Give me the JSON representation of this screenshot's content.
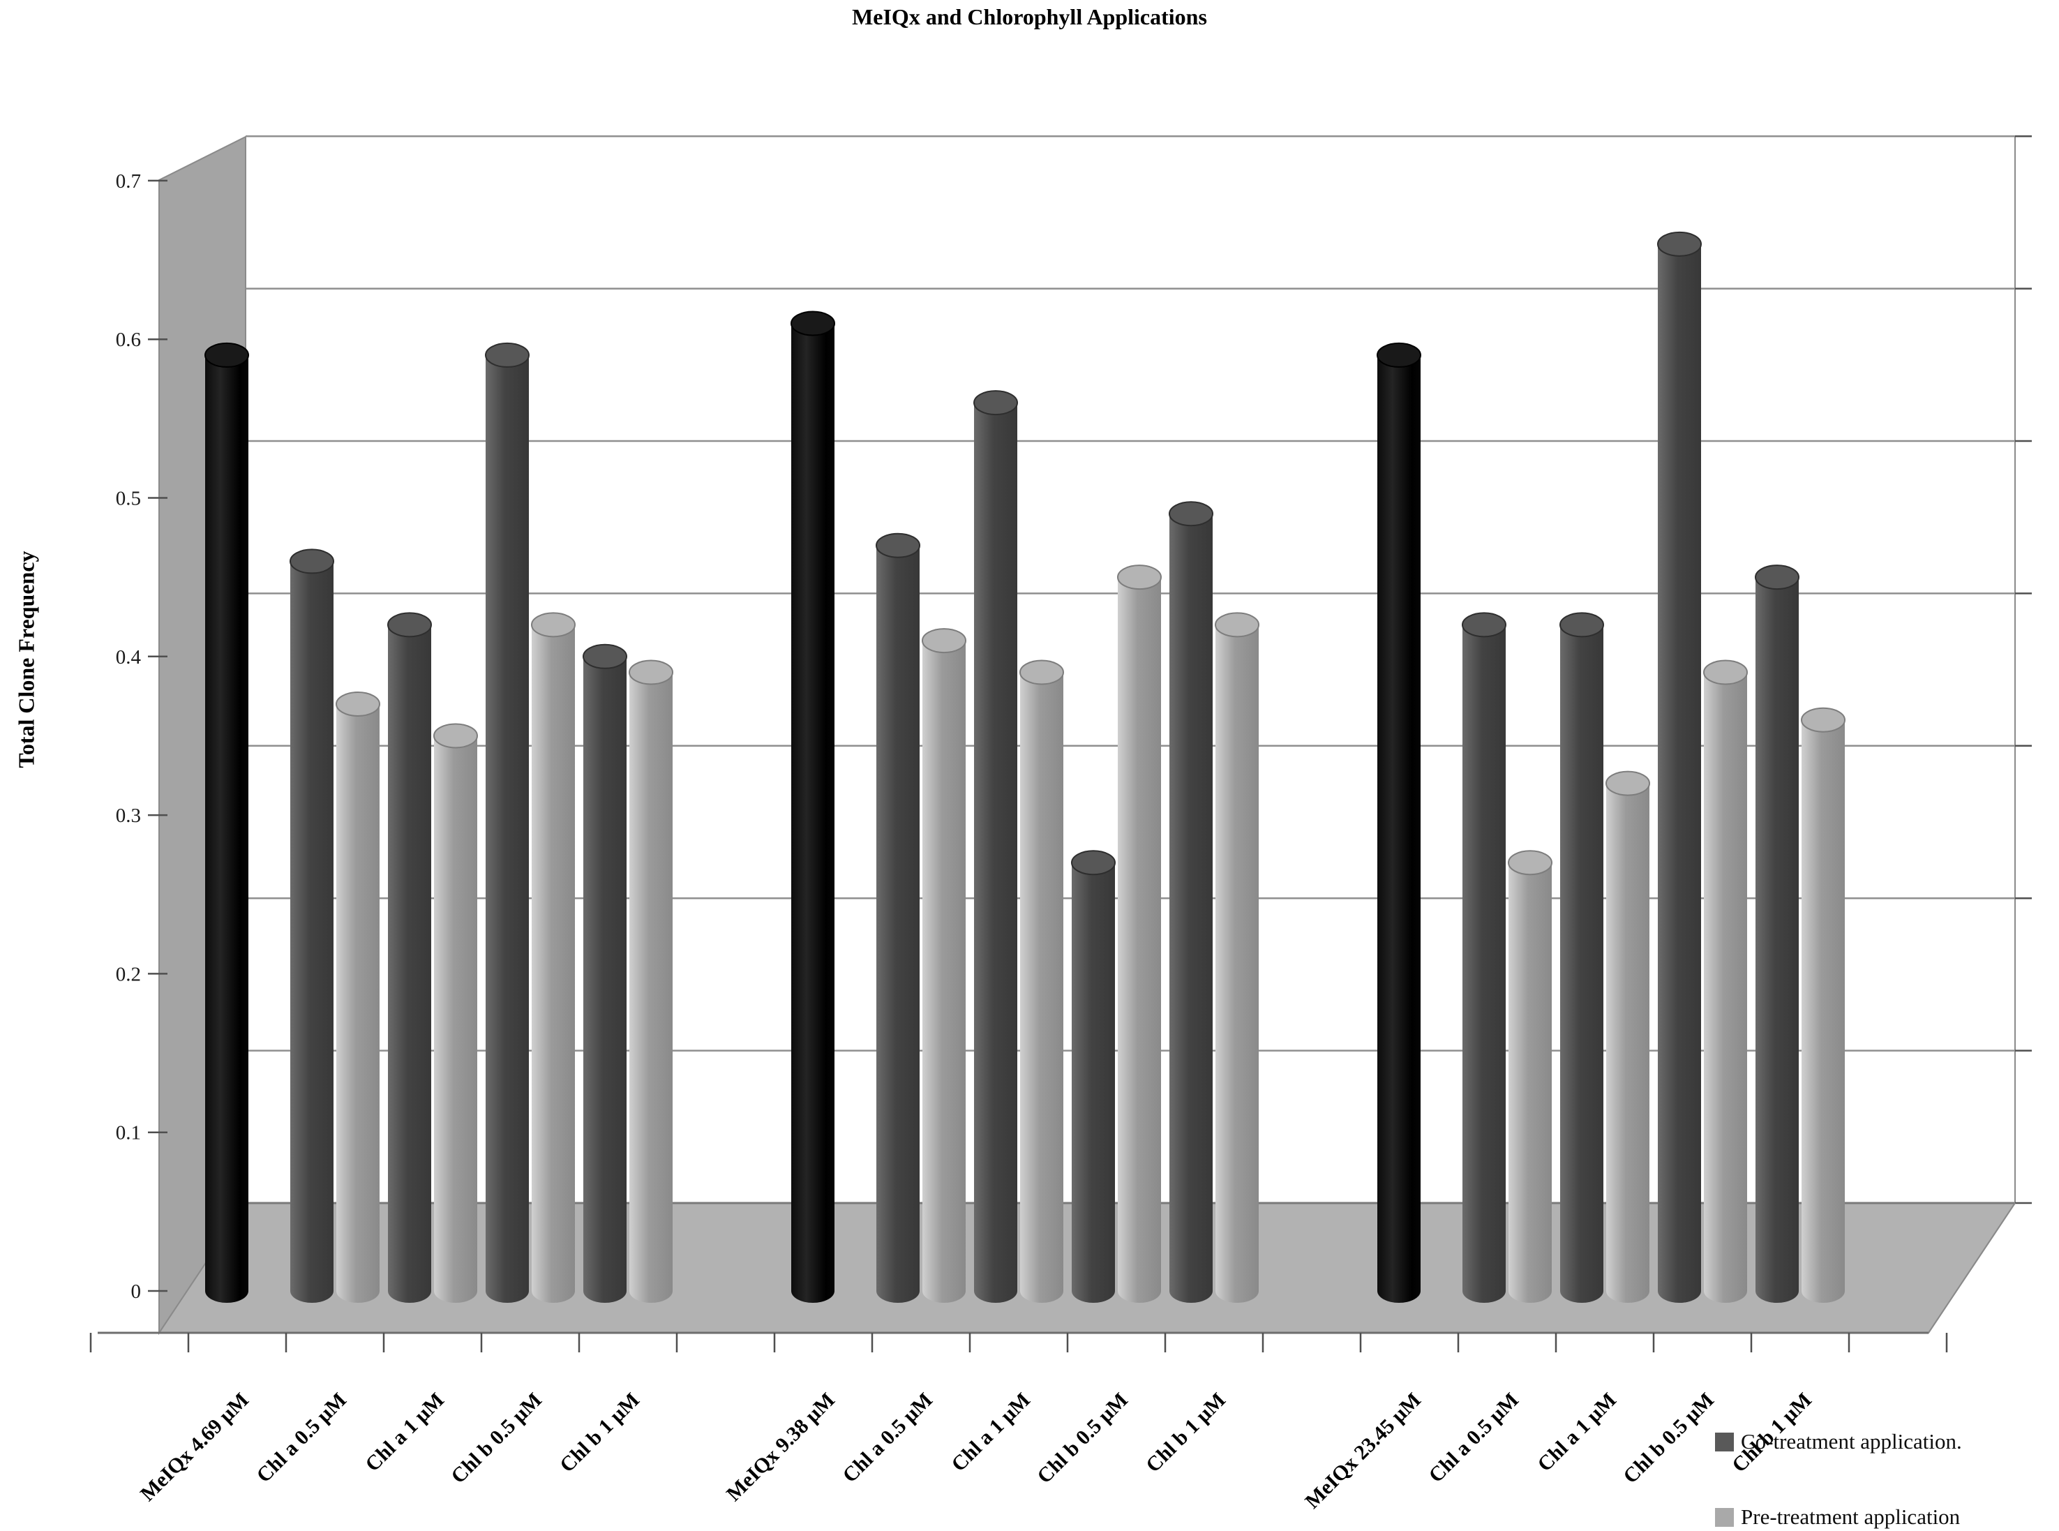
{
  "chart_data": {
    "type": "bar",
    "title": "MeIQx and Chlorophyll Applications",
    "ylabel": "Total Clone Frequency",
    "xlabel": "",
    "ylim": [
      0,
      0.7
    ],
    "y_ticks": [
      "0.7",
      "0.6",
      "0.5",
      "0.4",
      "0.3",
      "0.2",
      "0.1",
      "0"
    ],
    "grid": "horizontal gridlines on 3D back wall",
    "legend_position": "bottom-right",
    "legend": [
      {
        "label": "Co-treatment application.",
        "color": "#595959"
      },
      {
        "label": "Pre-treatment application",
        "color": "#a9a9a9"
      }
    ],
    "bar_colors": {
      "meiqx": "#000000",
      "co": "#4a4a4a",
      "pre": "#a8a8a8"
    },
    "groups": [
      {
        "meiqx": {
          "label": "MeIQx 4.69 µM",
          "value": 0.59
        },
        "items": [
          {
            "label": "Chl a 0.5 µM",
            "co": 0.46,
            "pre": 0.37
          },
          {
            "label": "Chl a 1 µM",
            "co": 0.42,
            "pre": 0.35
          },
          {
            "label": "Chl b 0.5 µM",
            "co": 0.59,
            "pre": 0.42
          },
          {
            "label": "Chl b 1 µM",
            "co": 0.4,
            "pre": 0.39
          }
        ]
      },
      {
        "meiqx": {
          "label": "MeIQx 9.38 µM",
          "value": 0.61
        },
        "items": [
          {
            "label": "Chl a 0.5 µM",
            "co": 0.47,
            "pre": 0.41
          },
          {
            "label": "Chl a 1 µM",
            "co": 0.56,
            "pre": 0.39
          },
          {
            "label": "Chl b 0.5 µM",
            "co": 0.27,
            "pre": 0.45
          },
          {
            "label": "Chl b 1 µM",
            "co": 0.49,
            "pre": 0.42
          }
        ]
      },
      {
        "meiqx": {
          "label": "MeIQx 23.45 µM",
          "value": 0.59
        },
        "items": [
          {
            "label": "Chl a 0.5 µM",
            "co": 0.42,
            "pre": 0.27
          },
          {
            "label": "Chl a 1 µM",
            "co": 0.42,
            "pre": 0.32
          },
          {
            "label": "Chl b 0.5 µM",
            "co": 0.66,
            "pre": 0.39
          },
          {
            "label": "Chl b 1 µM",
            "co": 0.45,
            "pre": 0.36
          }
        ]
      }
    ]
  }
}
